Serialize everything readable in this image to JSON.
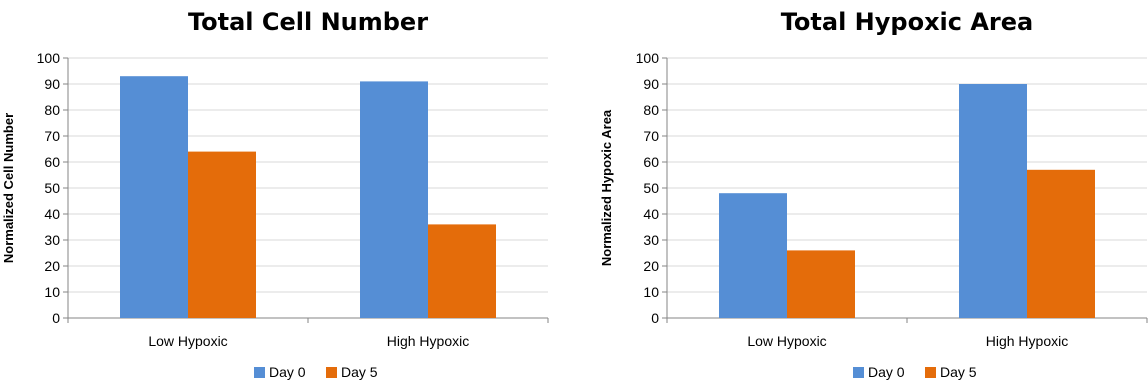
{
  "chart_data": [
    {
      "type": "bar",
      "title": "Total Cell Number",
      "xlabel": "",
      "ylabel": "Normalized Cell Number",
      "categories": [
        "Low Hypoxic",
        "High Hypoxic"
      ],
      "series": [
        {
          "name": "Day 0",
          "values": [
            93,
            91
          ],
          "color": "#558ed5"
        },
        {
          "name": "Day 5",
          "values": [
            64,
            36
          ],
          "color": "#e46c0a"
        }
      ],
      "ylim": [
        0,
        100
      ],
      "yticks": [
        0,
        10,
        20,
        30,
        40,
        50,
        60,
        70,
        80,
        90,
        100
      ],
      "grid": true,
      "legend_position": "bottom-center"
    },
    {
      "type": "bar",
      "title": "Total Hypoxic Area",
      "xlabel": "",
      "ylabel": "Normalized Hypoxic Area",
      "categories": [
        "Low Hypoxic",
        "High Hypoxic"
      ],
      "series": [
        {
          "name": "Day 0",
          "values": [
            48,
            90
          ],
          "color": "#558ed5"
        },
        {
          "name": "Day 5",
          "values": [
            26,
            57
          ],
          "color": "#e46c0a"
        }
      ],
      "ylim": [
        0,
        100
      ],
      "yticks": [
        0,
        10,
        20,
        30,
        40,
        50,
        60,
        70,
        80,
        90,
        100
      ],
      "grid": true,
      "legend_position": "bottom-center"
    }
  ]
}
